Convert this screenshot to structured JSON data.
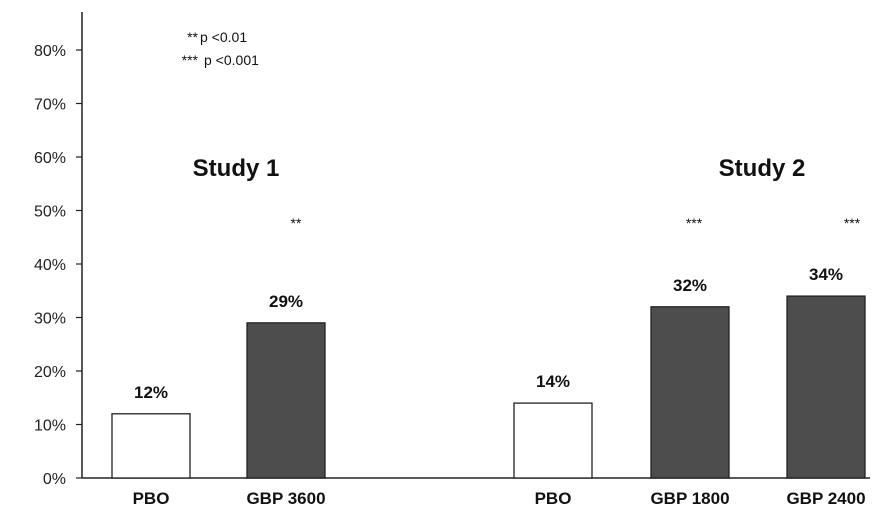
{
  "chart_data": {
    "type": "bar",
    "title": "",
    "xlabel": "",
    "ylabel": "",
    "ylim": [
      0,
      85
    ],
    "yticks": [
      "0%",
      "10%",
      "20%",
      "30%",
      "40%",
      "50%",
      "60%",
      "70%",
      "80%"
    ],
    "ytick_values": [
      0,
      10,
      20,
      30,
      40,
      50,
      60,
      70,
      80
    ],
    "grid": false,
    "groups": [
      {
        "name": "Study 1",
        "bars": [
          {
            "category": "PBO",
            "value": 12,
            "label": "12%",
            "significance": "",
            "fill": "#ffffff"
          },
          {
            "category": "GBP 3600",
            "value": 29,
            "label": "29%",
            "significance": "**",
            "fill": "#4d4d4d"
          }
        ]
      },
      {
        "name": "Study 2",
        "bars": [
          {
            "category": "PBO",
            "value": 14,
            "label": "14%",
            "significance": "",
            "fill": "#ffffff"
          },
          {
            "category": "GBP 1800",
            "value": 32,
            "label": "32%",
            "significance": "***",
            "fill": "#4d4d4d"
          },
          {
            "category": "GBP 2400",
            "value": 34,
            "label": "34%",
            "significance": "***",
            "fill": "#4d4d4d"
          }
        ]
      }
    ],
    "legend": {
      "placement": "top-left",
      "entries": [
        {
          "symbol": "**",
          "text": "p <0.01"
        },
        {
          "symbol": "***",
          "text": "p <0.001"
        }
      ]
    }
  },
  "colors": {
    "axis": "#222222",
    "filled_bar": "#4d4d4d",
    "open_bar": "#ffffff",
    "bar_outline": "#222222"
  }
}
